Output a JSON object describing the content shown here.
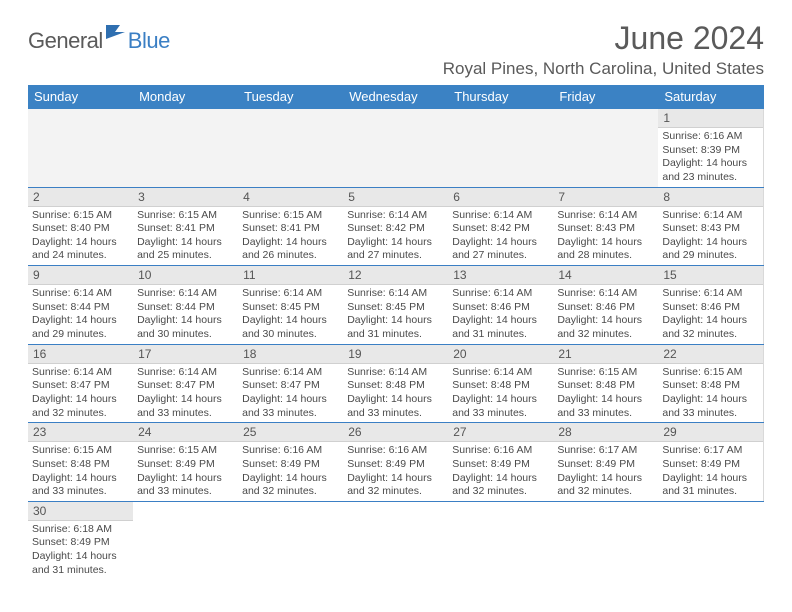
{
  "logo": {
    "text_general": "General",
    "text_blue": "Blue",
    "icon_color": "#2f6fb0"
  },
  "title": "June 2024",
  "location": "Royal Pines, North Carolina, United States",
  "colors": {
    "header_bg": "#3b82c4",
    "header_text": "#ffffff",
    "border": "#3b7fc4",
    "daynum_bg": "#e8e8e8",
    "empty_bg": "#f3f3f3",
    "text": "#4a4a4a"
  },
  "weekdays": [
    "Sunday",
    "Monday",
    "Tuesday",
    "Wednesday",
    "Thursday",
    "Friday",
    "Saturday"
  ],
  "weeks": [
    [
      null,
      null,
      null,
      null,
      null,
      null,
      {
        "num": "1",
        "sunrise": "6:16 AM",
        "sunset": "8:39 PM",
        "daylight": "14 hours and 23 minutes."
      }
    ],
    [
      {
        "num": "2",
        "sunrise": "6:15 AM",
        "sunset": "8:40 PM",
        "daylight": "14 hours and 24 minutes."
      },
      {
        "num": "3",
        "sunrise": "6:15 AM",
        "sunset": "8:41 PM",
        "daylight": "14 hours and 25 minutes."
      },
      {
        "num": "4",
        "sunrise": "6:15 AM",
        "sunset": "8:41 PM",
        "daylight": "14 hours and 26 minutes."
      },
      {
        "num": "5",
        "sunrise": "6:14 AM",
        "sunset": "8:42 PM",
        "daylight": "14 hours and 27 minutes."
      },
      {
        "num": "6",
        "sunrise": "6:14 AM",
        "sunset": "8:42 PM",
        "daylight": "14 hours and 27 minutes."
      },
      {
        "num": "7",
        "sunrise": "6:14 AM",
        "sunset": "8:43 PM",
        "daylight": "14 hours and 28 minutes."
      },
      {
        "num": "8",
        "sunrise": "6:14 AM",
        "sunset": "8:43 PM",
        "daylight": "14 hours and 29 minutes."
      }
    ],
    [
      {
        "num": "9",
        "sunrise": "6:14 AM",
        "sunset": "8:44 PM",
        "daylight": "14 hours and 29 minutes."
      },
      {
        "num": "10",
        "sunrise": "6:14 AM",
        "sunset": "8:44 PM",
        "daylight": "14 hours and 30 minutes."
      },
      {
        "num": "11",
        "sunrise": "6:14 AM",
        "sunset": "8:45 PM",
        "daylight": "14 hours and 30 minutes."
      },
      {
        "num": "12",
        "sunrise": "6:14 AM",
        "sunset": "8:45 PM",
        "daylight": "14 hours and 31 minutes."
      },
      {
        "num": "13",
        "sunrise": "6:14 AM",
        "sunset": "8:46 PM",
        "daylight": "14 hours and 31 minutes."
      },
      {
        "num": "14",
        "sunrise": "6:14 AM",
        "sunset": "8:46 PM",
        "daylight": "14 hours and 32 minutes."
      },
      {
        "num": "15",
        "sunrise": "6:14 AM",
        "sunset": "8:46 PM",
        "daylight": "14 hours and 32 minutes."
      }
    ],
    [
      {
        "num": "16",
        "sunrise": "6:14 AM",
        "sunset": "8:47 PM",
        "daylight": "14 hours and 32 minutes."
      },
      {
        "num": "17",
        "sunrise": "6:14 AM",
        "sunset": "8:47 PM",
        "daylight": "14 hours and 33 minutes."
      },
      {
        "num": "18",
        "sunrise": "6:14 AM",
        "sunset": "8:47 PM",
        "daylight": "14 hours and 33 minutes."
      },
      {
        "num": "19",
        "sunrise": "6:14 AM",
        "sunset": "8:48 PM",
        "daylight": "14 hours and 33 minutes."
      },
      {
        "num": "20",
        "sunrise": "6:14 AM",
        "sunset": "8:48 PM",
        "daylight": "14 hours and 33 minutes."
      },
      {
        "num": "21",
        "sunrise": "6:15 AM",
        "sunset": "8:48 PM",
        "daylight": "14 hours and 33 minutes."
      },
      {
        "num": "22",
        "sunrise": "6:15 AM",
        "sunset": "8:48 PM",
        "daylight": "14 hours and 33 minutes."
      }
    ],
    [
      {
        "num": "23",
        "sunrise": "6:15 AM",
        "sunset": "8:48 PM",
        "daylight": "14 hours and 33 minutes."
      },
      {
        "num": "24",
        "sunrise": "6:15 AM",
        "sunset": "8:49 PM",
        "daylight": "14 hours and 33 minutes."
      },
      {
        "num": "25",
        "sunrise": "6:16 AM",
        "sunset": "8:49 PM",
        "daylight": "14 hours and 32 minutes."
      },
      {
        "num": "26",
        "sunrise": "6:16 AM",
        "sunset": "8:49 PM",
        "daylight": "14 hours and 32 minutes."
      },
      {
        "num": "27",
        "sunrise": "6:16 AM",
        "sunset": "8:49 PM",
        "daylight": "14 hours and 32 minutes."
      },
      {
        "num": "28",
        "sunrise": "6:17 AM",
        "sunset": "8:49 PM",
        "daylight": "14 hours and 32 minutes."
      },
      {
        "num": "29",
        "sunrise": "6:17 AM",
        "sunset": "8:49 PM",
        "daylight": "14 hours and 31 minutes."
      }
    ],
    [
      {
        "num": "30",
        "sunrise": "6:18 AM",
        "sunset": "8:49 PM",
        "daylight": "14 hours and 31 minutes."
      },
      null,
      null,
      null,
      null,
      null,
      null
    ]
  ],
  "labels": {
    "sunrise": "Sunrise: ",
    "sunset": "Sunset: ",
    "daylight": "Daylight: "
  }
}
